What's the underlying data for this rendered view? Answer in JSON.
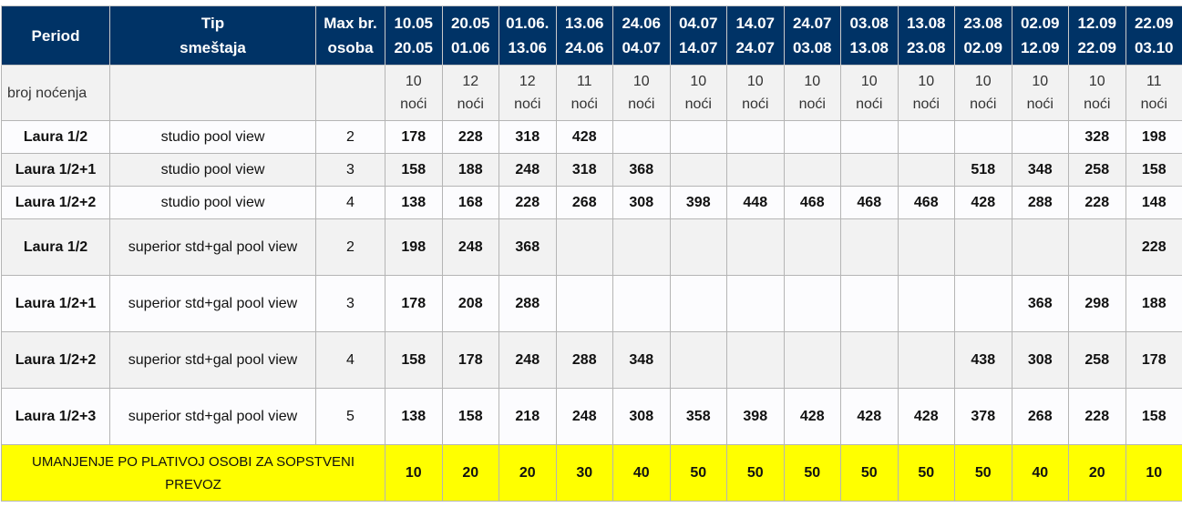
{
  "header": {
    "period": "Period",
    "type": [
      "Tip",
      "smeštaja"
    ],
    "max": [
      "Max br.",
      "osoba"
    ],
    "periods": [
      [
        "10.05",
        "20.05"
      ],
      [
        "20.05",
        "01.06"
      ],
      [
        "01.06.",
        "13.06"
      ],
      [
        "13.06",
        "24.06"
      ],
      [
        "24.06",
        "04.07"
      ],
      [
        "04.07",
        "14.07"
      ],
      [
        "14.07",
        "24.07"
      ],
      [
        "24.07",
        "03.08"
      ],
      [
        "03.08",
        "13.08"
      ],
      [
        "13.08",
        "23.08"
      ],
      [
        "23.08",
        "02.09"
      ],
      [
        "02.09",
        "12.09"
      ],
      [
        "12.09",
        "22.09"
      ],
      [
        "22.09",
        "03.10"
      ]
    ]
  },
  "nights": {
    "label": "broj noćenja",
    "values": [
      [
        "10",
        "noći"
      ],
      [
        "12",
        "noći"
      ],
      [
        "12",
        "noći"
      ],
      [
        "11",
        "noći"
      ],
      [
        "10",
        "noći"
      ],
      [
        "10",
        "noći"
      ],
      [
        "10",
        "noći"
      ],
      [
        "10",
        "noći"
      ],
      [
        "10",
        "noći"
      ],
      [
        "10",
        "noći"
      ],
      [
        "10",
        "noći"
      ],
      [
        "10",
        "noći"
      ],
      [
        "10",
        "noći"
      ],
      [
        "11",
        "noći"
      ]
    ]
  },
  "rows": [
    {
      "name": "Laura 1/2",
      "type": "studio pool view",
      "max": "2",
      "prices": [
        "178",
        "228",
        "318",
        "428",
        "",
        "",
        "",
        "",
        "",
        "",
        "",
        "",
        "328",
        "198"
      ]
    },
    {
      "name": "Laura 1/2+1",
      "type": "studio pool view",
      "max": "3",
      "prices": [
        "158",
        "188",
        "248",
        "318",
        "368",
        "",
        "",
        "",
        "",
        "",
        "518",
        "348",
        "258",
        "158"
      ]
    },
    {
      "name": "Laura 1/2+2",
      "type": "studio pool view",
      "max": "4",
      "prices": [
        "138",
        "168",
        "228",
        "268",
        "308",
        "398",
        "448",
        "468",
        "468",
        "468",
        "428",
        "288",
        "228",
        "148"
      ]
    },
    {
      "name": "Laura 1/2",
      "type": "superior std+gal pool view",
      "max": "2",
      "prices": [
        "198",
        "248",
        "368",
        "",
        "",
        "",
        "",
        "",
        "",
        "",
        "",
        "",
        "",
        "228"
      ]
    },
    {
      "name": "Laura 1/2+1",
      "type": "superior std+gal pool view",
      "max": "3",
      "prices": [
        "178",
        "208",
        "288",
        "",
        "",
        "",
        "",
        "",
        "",
        "",
        "",
        "368",
        "298",
        "188"
      ]
    },
    {
      "name": "Laura 1/2+2",
      "type": "superior std+gal pool view",
      "max": "4",
      "prices": [
        "158",
        "178",
        "248",
        "288",
        "348",
        "",
        "",
        "",
        "",
        "",
        "438",
        "308",
        "258",
        "178"
      ]
    },
    {
      "name": "Laura 1/2+3",
      "type": "superior std+gal pool view",
      "max": "5",
      "prices": [
        "138",
        "158",
        "218",
        "248",
        "308",
        "358",
        "398",
        "428",
        "428",
        "428",
        "378",
        "268",
        "228",
        "158"
      ]
    }
  ],
  "discount": {
    "label": "UMANJENJE PO PLATIVOJ OSOBI ZA SOPSTVENI PREVOZ",
    "values": [
      "10",
      "20",
      "20",
      "30",
      "40",
      "50",
      "50",
      "50",
      "50",
      "50",
      "50",
      "40",
      "20",
      "10"
    ]
  },
  "colors": {
    "header_bg": "#003366",
    "highlight": "#ffff00",
    "row_alt": "#f2f2f2"
  }
}
